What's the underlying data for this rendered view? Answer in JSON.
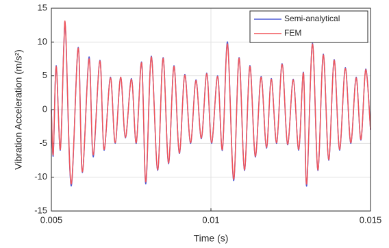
{
  "chart_data": {
    "type": "line",
    "xlabel": "Time (s)",
    "ylabel": "Vibration Acceleration (m/s²)",
    "x": [
      0.005,
      0.00506,
      0.00515,
      0.00528,
      0.00539,
      0.00545,
      0.00562,
      0.00584,
      0.00597,
      0.00618,
      0.00631,
      0.00652,
      0.00665,
      0.00685,
      0.007,
      0.00717,
      0.00732,
      0.00751,
      0.00766,
      0.00783,
      0.00796,
      0.00813,
      0.00833,
      0.0085,
      0.00867,
      0.00884,
      0.00901,
      0.00918,
      0.00936,
      0.00953,
      0.0097,
      0.00987,
      0.01002,
      0.01021,
      0.01036,
      0.01052,
      0.01071,
      0.01088,
      0.01105,
      0.01122,
      0.01139,
      0.01157,
      0.01174,
      0.01189,
      0.01206,
      0.01223,
      0.0124,
      0.01258,
      0.01275,
      0.0129,
      0.013,
      0.01318,
      0.01335,
      0.01352,
      0.01369,
      0.01386,
      0.01403,
      0.01421,
      0.01438,
      0.01455,
      0.0147,
      0.01485,
      0.015
    ],
    "series": [
      {
        "name": "Semi-analytical",
        "color": "#4f5bd5",
        "values": [
          0,
          -6.8,
          6.5,
          -6.0,
          9.5,
          11.3,
          -11.3,
          9.2,
          -9.3,
          7.8,
          -7.0,
          7.3,
          -6.0,
          4.8,
          -5.0,
          4.8,
          -4.2,
          4.6,
          -5.0,
          7.0,
          -11.0,
          7.9,
          -9.0,
          7.7,
          -8.0,
          6.5,
          -6.5,
          5.2,
          -5.0,
          4.4,
          -4.3,
          5.4,
          -5.0,
          5.0,
          -6.0,
          10.0,
          -10.5,
          7.7,
          -9.0,
          6.5,
          -7.0,
          4.9,
          -5.7,
          4.6,
          -5.0,
          6.8,
          -5.2,
          4.5,
          -6.0,
          5.5,
          -11.3,
          9.8,
          -9.0,
          8.2,
          -7.5,
          7.4,
          -6.0,
          6.2,
          -5.0,
          4.8,
          -4.5,
          6.0,
          -3.0
        ]
      },
      {
        "name": "FEM",
        "color": "#f0555a",
        "values": [
          0,
          -6.6,
          6.4,
          -5.9,
          9.4,
          11.5,
          -11.0,
          9.1,
          -9.2,
          7.5,
          -6.7,
          7.2,
          -5.9,
          4.7,
          -4.9,
          4.8,
          -4.1,
          4.5,
          -4.9,
          6.9,
          -10.7,
          7.8,
          -8.9,
          7.6,
          -7.9,
          6.4,
          -6.4,
          5.1,
          -4.9,
          4.3,
          -4.2,
          5.3,
          -4.9,
          4.9,
          -5.9,
          9.7,
          -10.3,
          7.6,
          -8.9,
          6.4,
          -6.9,
          4.8,
          -5.6,
          4.5,
          -4.9,
          6.7,
          -5.1,
          4.4,
          -5.9,
          5.4,
          -11.0,
          9.7,
          -8.9,
          8.1,
          -7.4,
          7.3,
          -5.9,
          6.1,
          -4.9,
          4.7,
          -4.4,
          5.9,
          -3.0
        ]
      }
    ],
    "xlim": [
      0.005,
      0.015
    ],
    "xticks": [
      0.005,
      0.01,
      0.015
    ],
    "ylim": [
      -15,
      15
    ],
    "yticks": [
      -15,
      -10,
      -5,
      0,
      5,
      10,
      15
    ],
    "grid": true,
    "legend": "upper right"
  }
}
